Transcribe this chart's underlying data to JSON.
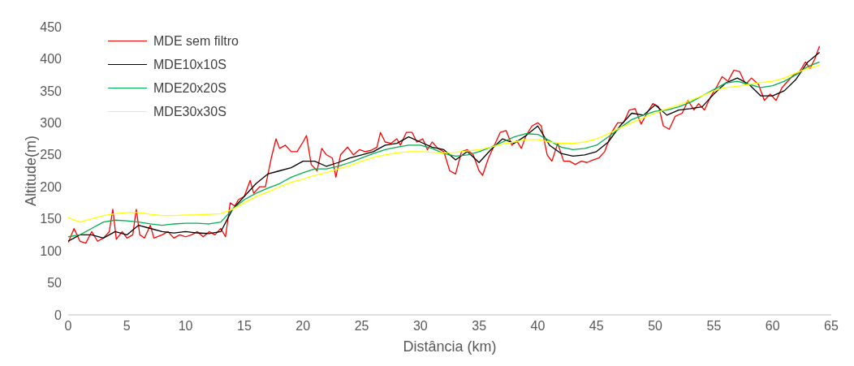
{
  "chart_data": {
    "type": "line",
    "xlabel": "Distância (km)",
    "ylabel": "Altitude(m)",
    "xlim": [
      0,
      65
    ],
    "xticks": [
      0,
      5,
      10,
      15,
      20,
      25,
      30,
      35,
      40,
      45,
      50,
      55,
      60,
      65
    ],
    "ylim": [
      0,
      450
    ],
    "yticks": [
      0,
      50,
      100,
      150,
      200,
      250,
      300,
      350,
      400,
      450
    ],
    "grid": false,
    "legend": "top left",
    "marker": "none",
    "line_style": "solid",
    "series": [
      {
        "name": "MDE sem filtro",
        "color": "#ff0000",
        "x": [
          0,
          0.5,
          1,
          1.5,
          2,
          2.5,
          3,
          3.5,
          3.8,
          4.1,
          4.6,
          5,
          5.5,
          5.8,
          6.1,
          6.5,
          7,
          7.3,
          8,
          8.5,
          9,
          9.5,
          10,
          10.5,
          11,
          11.5,
          12,
          12.5,
          13,
          13.4,
          13.8,
          14.2,
          14.5,
          15,
          15.5,
          15.8,
          16.3,
          16.8,
          17.3,
          17.7,
          18,
          18.5,
          19,
          19.5,
          20,
          20.3,
          20.7,
          21.2,
          21.6,
          22,
          22.5,
          22.8,
          23.2,
          23.8,
          24.3,
          24.8,
          25.3,
          25.8,
          26.3,
          26.6,
          27,
          27.5,
          28,
          28.3,
          28.8,
          29.3,
          29.7,
          30.2,
          30.6,
          31,
          31.5,
          32,
          32.5,
          33,
          33.5,
          34,
          34.5,
          35,
          35.3,
          35.8,
          36.3,
          36.8,
          37.3,
          37.8,
          38.2,
          38.6,
          39,
          39.5,
          40,
          40.3,
          40.8,
          41.2,
          41.7,
          42.2,
          42.7,
          43.2,
          43.7,
          44.2,
          44.7,
          45.2,
          45.7,
          46.3,
          46.8,
          47.3,
          47.8,
          48.3,
          48.8,
          49.3,
          49.8,
          50.3,
          50.7,
          51.2,
          51.7,
          52.3,
          52.8,
          53.3,
          53.7,
          54.2,
          54.7,
          55.2,
          55.7,
          56.2,
          56.7,
          57.2,
          57.7,
          58.2,
          58.8,
          59.3,
          59.8,
          60.3,
          60.8,
          61.3,
          61.8,
          62.3,
          62.8,
          63.2,
          63.6,
          64
        ],
        "values": [
          113,
          135,
          115,
          112,
          130,
          115,
          120,
          130,
          165,
          118,
          130,
          120,
          125,
          165,
          125,
          120,
          140,
          120,
          125,
          130,
          120,
          125,
          122,
          125,
          130,
          122,
          130,
          125,
          135,
          122,
          175,
          170,
          180,
          185,
          210,
          190,
          200,
          200,
          245,
          275,
          260,
          265,
          255,
          255,
          270,
          280,
          235,
          225,
          260,
          250,
          245,
          215,
          250,
          262,
          250,
          258,
          255,
          257,
          262,
          285,
          270,
          268,
          275,
          265,
          285,
          285,
          270,
          275,
          258,
          270,
          260,
          255,
          225,
          220,
          255,
          258,
          250,
          225,
          218,
          245,
          265,
          285,
          288,
          265,
          272,
          260,
          280,
          295,
          300,
          295,
          250,
          240,
          268,
          240,
          240,
          235,
          240,
          238,
          242,
          245,
          255,
          285,
          300,
          300,
          320,
          322,
          298,
          315,
          330,
          325,
          295,
          290,
          310,
          315,
          335,
          320,
          330,
          320,
          340,
          355,
          372,
          365,
          382,
          380,
          360,
          370,
          360,
          335,
          345,
          335,
          355,
          365,
          375,
          380,
          395,
          385,
          400,
          420
        ]
      },
      {
        "name": "MDE10x10S",
        "color": "#000000",
        "x": [
          0,
          1,
          2,
          3,
          4,
          5,
          6,
          7,
          8,
          9,
          10,
          11,
          12,
          13,
          14,
          15,
          16,
          17,
          18,
          19,
          20,
          21,
          22,
          23,
          24,
          25,
          26,
          27,
          28,
          29,
          30,
          31,
          32,
          33,
          34,
          35,
          36,
          37,
          38,
          39,
          40,
          41,
          42,
          43,
          44,
          45,
          46,
          47,
          48,
          49,
          50,
          51,
          52,
          53,
          54,
          55,
          56,
          57,
          58,
          59,
          60,
          61,
          62,
          63,
          64
        ],
        "values": [
          115,
          125,
          125,
          120,
          130,
          125,
          140,
          135,
          130,
          128,
          130,
          128,
          127,
          130,
          165,
          185,
          205,
          220,
          225,
          230,
          240,
          240,
          232,
          238,
          245,
          250,
          255,
          265,
          268,
          278,
          270,
          262,
          258,
          242,
          255,
          238,
          258,
          275,
          268,
          280,
          295,
          265,
          252,
          248,
          250,
          255,
          270,
          295,
          315,
          312,
          328,
          312,
          320,
          322,
          325,
          345,
          362,
          370,
          360,
          342,
          342,
          350,
          368,
          395,
          410
        ]
      },
      {
        "name": "MDE20x20S",
        "color": "#00b050",
        "x": [
          0,
          1,
          2,
          3,
          4,
          5,
          6,
          7,
          8,
          9,
          10,
          11,
          12,
          13,
          14,
          15,
          16,
          17,
          18,
          19,
          20,
          21,
          22,
          23,
          24,
          25,
          26,
          27,
          28,
          29,
          30,
          31,
          32,
          33,
          34,
          35,
          36,
          37,
          38,
          39,
          40,
          41,
          42,
          43,
          44,
          45,
          46,
          47,
          48,
          49,
          50,
          51,
          52,
          53,
          54,
          55,
          56,
          57,
          58,
          59,
          60,
          61,
          62,
          63,
          64
        ],
        "values": [
          122,
          125,
          135,
          145,
          148,
          147,
          145,
          142,
          140,
          142,
          143,
          143,
          142,
          145,
          165,
          180,
          190,
          198,
          205,
          215,
          222,
          228,
          228,
          232,
          238,
          245,
          252,
          258,
          262,
          265,
          265,
          260,
          252,
          248,
          250,
          255,
          262,
          270,
          278,
          283,
          282,
          272,
          262,
          258,
          260,
          265,
          278,
          292,
          305,
          312,
          318,
          320,
          325,
          332,
          342,
          352,
          362,
          365,
          360,
          355,
          358,
          365,
          375,
          388,
          395
        ]
      },
      {
        "name": "MDE30x30S",
        "color": "#ffff00",
        "x": [
          0,
          1,
          2,
          3,
          4,
          5,
          6,
          7,
          8,
          9,
          10,
          11,
          12,
          13,
          14,
          15,
          16,
          17,
          18,
          19,
          20,
          21,
          22,
          23,
          24,
          25,
          26,
          27,
          28,
          29,
          30,
          31,
          32,
          33,
          34,
          35,
          36,
          37,
          38,
          39,
          40,
          41,
          42,
          43,
          44,
          45,
          46,
          47,
          48,
          49,
          50,
          51,
          52,
          53,
          54,
          55,
          56,
          57,
          58,
          59,
          60,
          61,
          62,
          63,
          64
        ],
        "values": [
          152,
          145,
          150,
          155,
          158,
          160,
          160,
          157,
          155,
          155,
          156,
          156,
          157,
          158,
          165,
          175,
          185,
          192,
          200,
          207,
          212,
          218,
          222,
          228,
          233,
          240,
          246,
          250,
          253,
          255,
          255,
          254,
          253,
          254,
          256,
          258,
          262,
          267,
          270,
          274,
          274,
          270,
          268,
          268,
          270,
          275,
          283,
          292,
          300,
          308,
          315,
          322,
          328,
          335,
          342,
          350,
          355,
          357,
          360,
          363,
          365,
          370,
          378,
          385,
          390
        ]
      }
    ]
  }
}
